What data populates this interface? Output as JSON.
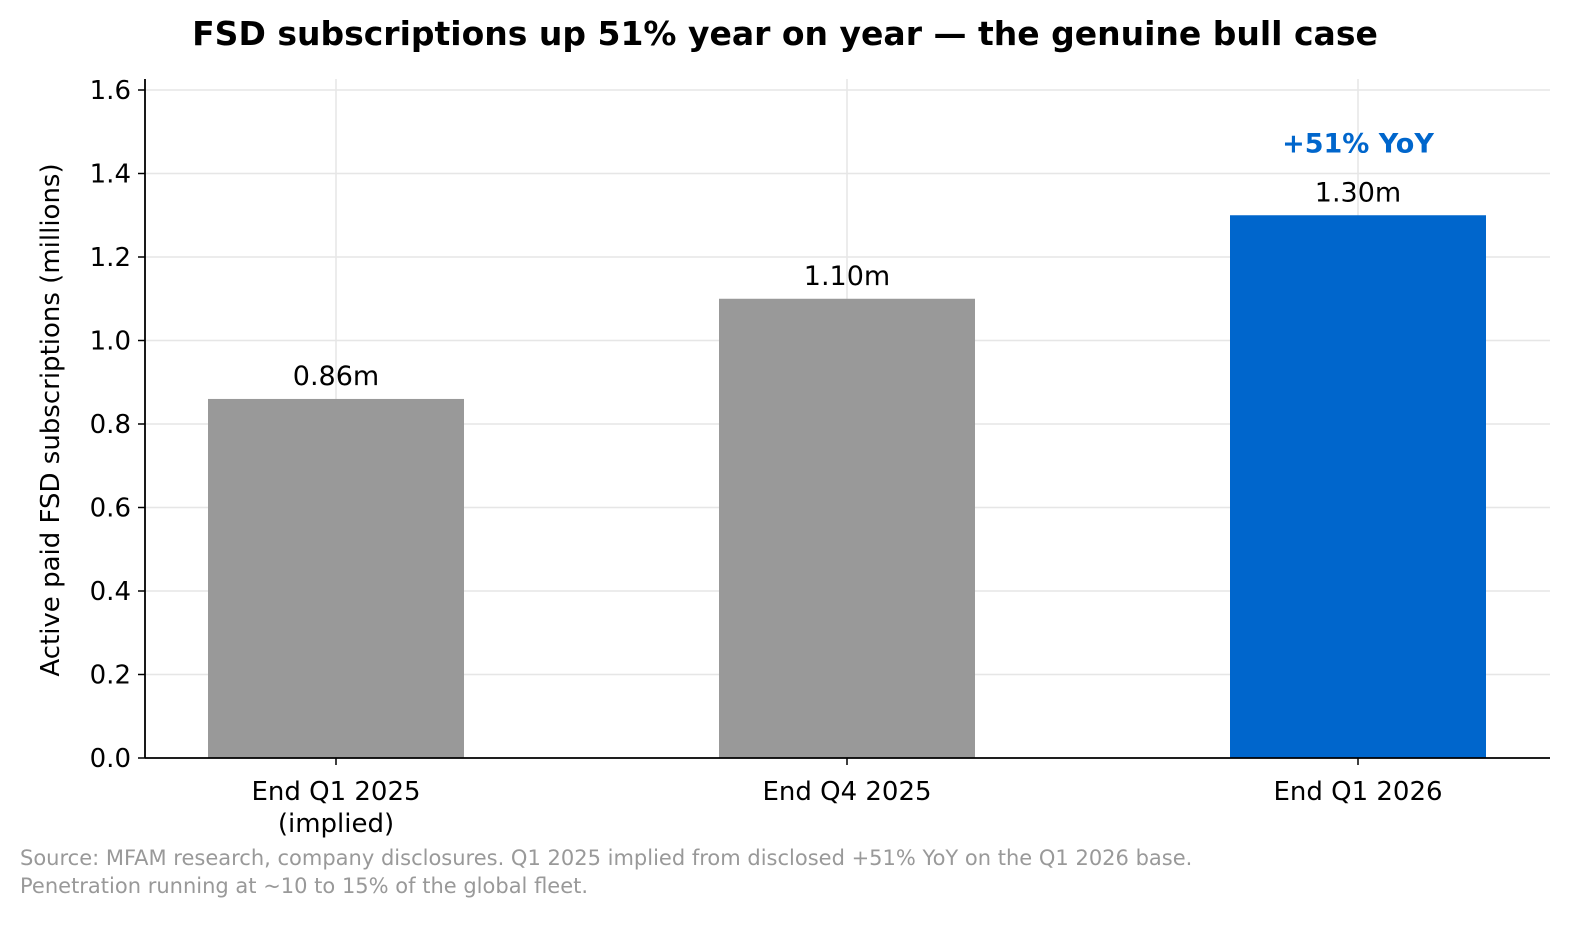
{
  "chart_data": {
    "type": "bar",
    "title": "FSD subscriptions up 51% year on year — the genuine bull case",
    "ylabel": "Active paid FSD subscriptions (millions)",
    "xlabel": "",
    "ylim": [
      0,
      1.6
    ],
    "yticks": [
      0.0,
      0.2,
      0.4,
      0.6,
      0.8,
      1.0,
      1.2,
      1.4,
      1.6
    ],
    "ytick_labels": [
      "0.0",
      "0.2",
      "0.4",
      "0.6",
      "0.8",
      "1.0",
      "1.2",
      "1.4",
      "1.6"
    ],
    "categories": [
      [
        "End Q1 2025",
        "(implied)"
      ],
      [
        "End Q4 2025"
      ],
      [
        "End Q1 2026"
      ]
    ],
    "values": [
      0.86,
      1.1,
      1.3
    ],
    "value_labels": [
      "0.86m",
      "1.10m",
      "1.30m"
    ],
    "colors": [
      "#999999",
      "#999999",
      "#0066CC"
    ],
    "annotation": {
      "text": "+51% YoY",
      "bar_index": 2,
      "color": "#0066CC"
    },
    "grid": true,
    "legend": "none"
  },
  "footnote": {
    "line1": "Source: MFAM research, company disclosures. Q1 2025 implied from disclosed +51% YoY on the Q1 2026 base.",
    "line2": "Penetration running at ~10 to 15% of the global fleet."
  }
}
